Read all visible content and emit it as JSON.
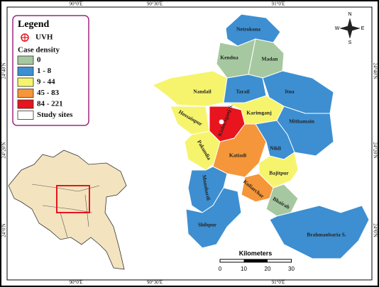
{
  "frame": {
    "top_labels": [
      "90°0'E",
      "90°30'E",
      "91°0'E"
    ],
    "bottom_labels": [
      "90°0'E",
      "90°30'E",
      "91°0'E"
    ],
    "left_labels": [
      "24°40'N",
      "24°20'N",
      "24°0'N"
    ],
    "right_labels": [
      "24°40'N",
      "24°20'N",
      "24°0'N"
    ]
  },
  "legend": {
    "title": "Legend",
    "uvh": "UVH",
    "subtitle": "Case density",
    "items": [
      {
        "label": "0",
        "color": "#a6c8a0"
      },
      {
        "label": "1 - 8",
        "color": "#3d8fd1"
      },
      {
        "label": "9 - 44",
        "color": "#f6f46c"
      },
      {
        "label": "45 - 83",
        "color": "#f5963a"
      },
      {
        "label": "84 - 221",
        "color": "#e8141e"
      },
      {
        "label": "Study sites",
        "color": "#ffffff"
      }
    ]
  },
  "regions": [
    {
      "name": "Netrokona",
      "color": "#3d8fd1"
    },
    {
      "name": "Kendua",
      "color": "#a6c8a0"
    },
    {
      "name": "Madan",
      "color": "#a6c8a0"
    },
    {
      "name": "Nandail",
      "color": "#f6f46c"
    },
    {
      "name": "Tarail",
      "color": "#3d8fd1"
    },
    {
      "name": "Itna",
      "color": "#3d8fd1"
    },
    {
      "name": "Hossainpur",
      "color": "#f6f46c"
    },
    {
      "name": "Kishoreganj S.",
      "color": "#e8141e"
    },
    {
      "name": "Karimganj",
      "color": "#f6f46c"
    },
    {
      "name": "Mithamain",
      "color": "#3d8fd1"
    },
    {
      "name": "Pakundia",
      "color": "#f6f46c"
    },
    {
      "name": "Katiadi",
      "color": "#f5963a"
    },
    {
      "name": "Nikli",
      "color": "#3d8fd1"
    },
    {
      "name": "Bajitpur",
      "color": "#f6f46c"
    },
    {
      "name": "Kuliarchar",
      "color": "#f5963a"
    },
    {
      "name": "Bhairab",
      "color": "#a6c8a0"
    },
    {
      "name": "Monohardi",
      "color": "#3d8fd1"
    },
    {
      "name": "Shibpur",
      "color": "#3d8fd1"
    },
    {
      "name": "Brahmanbaria S.",
      "color": "#3d8fd1"
    }
  ],
  "compass": {
    "n": "N",
    "s": "S",
    "e": "E",
    "w": "W"
  },
  "scale": {
    "title": "Kilometers",
    "ticks": [
      0,
      10,
      20,
      30
    ]
  }
}
